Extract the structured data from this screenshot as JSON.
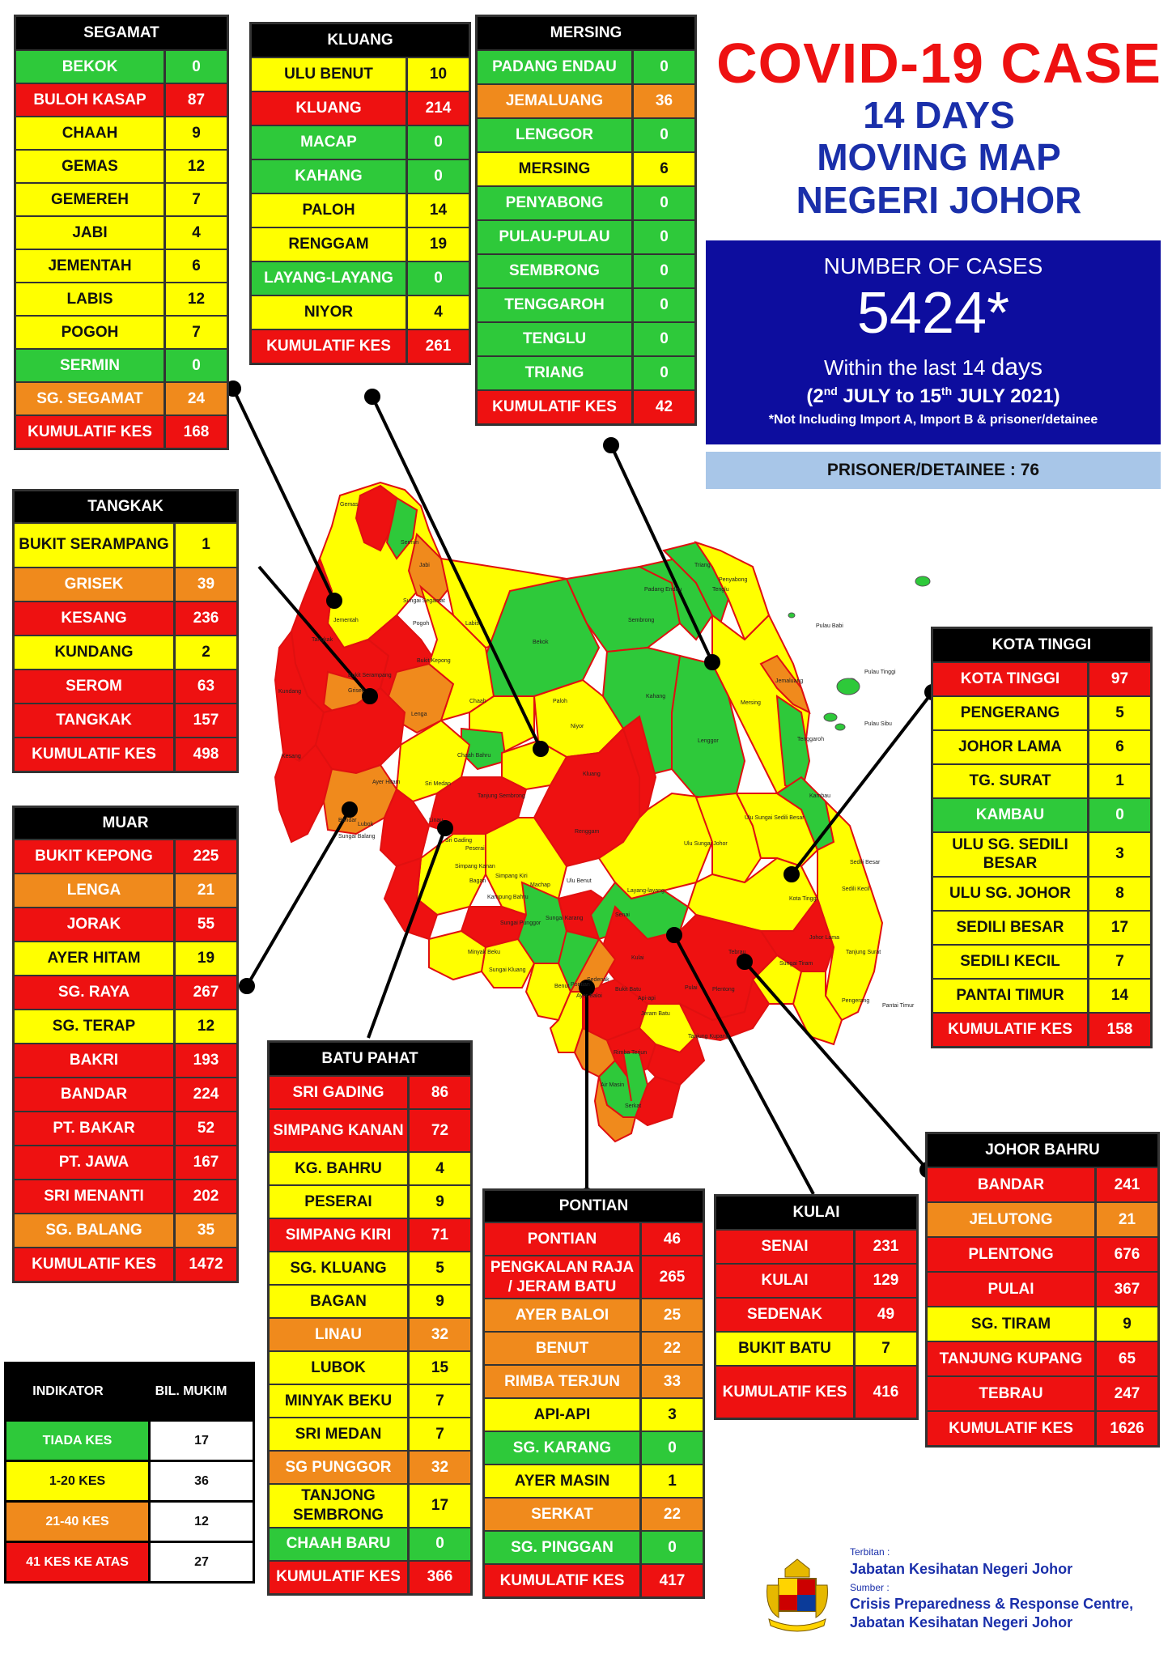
{
  "title": {
    "line1": "COVID-19 CASE",
    "line2": "14 DAYS",
    "line3": "MOVING MAP",
    "line4": "NEGERI JOHOR"
  },
  "summary": {
    "label": "NUMBER OF CASES",
    "total": "5424*",
    "within_prefix": "Within the last 14",
    "within_days": "days",
    "range_a": "(2",
    "range_sup1": "nd",
    "range_b": " JULY to 15",
    "range_sup2": "th",
    "range_c": " JULY 2021)",
    "note": "*Not Including Import A, Import B & prisoner/detainee",
    "prisoner": "PRISONER/DETAINEE : 76"
  },
  "districts": {
    "segamat": {
      "name": "SEGAMAT",
      "rows": [
        {
          "name": "BEKOK",
          "value": "0",
          "level": "green"
        },
        {
          "name": "BULOH KASAP",
          "value": "87",
          "level": "red"
        },
        {
          "name": "CHAAH",
          "value": "9",
          "level": "yellow"
        },
        {
          "name": "GEMAS",
          "value": "12",
          "level": "yellow"
        },
        {
          "name": "GEMEREH",
          "value": "7",
          "level": "yellow"
        },
        {
          "name": "JABI",
          "value": "4",
          "level": "yellow"
        },
        {
          "name": "JEMENTAH",
          "value": "6",
          "level": "yellow"
        },
        {
          "name": "LABIS",
          "value": "12",
          "level": "yellow"
        },
        {
          "name": "POGOH",
          "value": "7",
          "level": "yellow"
        },
        {
          "name": "SERMIN",
          "value": "0",
          "level": "green"
        },
        {
          "name": "SG. SEGAMAT",
          "value": "24",
          "level": "orange"
        },
        {
          "name": "KUMULATIF KES",
          "value": "168",
          "level": "red"
        }
      ]
    },
    "kluang": {
      "name": "KLUANG",
      "rows": [
        {
          "name": "ULU BENUT",
          "value": "10",
          "level": "yellow"
        },
        {
          "name": "KLUANG",
          "value": "214",
          "level": "red"
        },
        {
          "name": "MACAP",
          "value": "0",
          "level": "green"
        },
        {
          "name": "KAHANG",
          "value": "0",
          "level": "green"
        },
        {
          "name": "PALOH",
          "value": "14",
          "level": "yellow"
        },
        {
          "name": "RENGGAM",
          "value": "19",
          "level": "yellow"
        },
        {
          "name": "LAYANG-LAYANG",
          "value": "0",
          "level": "green"
        },
        {
          "name": "NIYOR",
          "value": "4",
          "level": "yellow"
        },
        {
          "name": "KUMULATIF KES",
          "value": "261",
          "level": "red"
        }
      ]
    },
    "mersing": {
      "name": "MERSING",
      "rows": [
        {
          "name": "PADANG ENDAU",
          "value": "0",
          "level": "green"
        },
        {
          "name": "JEMALUANG",
          "value": "36",
          "level": "orange"
        },
        {
          "name": "LENGGOR",
          "value": "0",
          "level": "green"
        },
        {
          "name": "MERSING",
          "value": "6",
          "level": "yellow"
        },
        {
          "name": "PENYABONG",
          "value": "0",
          "level": "green"
        },
        {
          "name": "PULAU-PULAU",
          "value": "0",
          "level": "green"
        },
        {
          "name": "SEMBRONG",
          "value": "0",
          "level": "green"
        },
        {
          "name": "TENGGAROH",
          "value": "0",
          "level": "green"
        },
        {
          "name": "TENGLU",
          "value": "0",
          "level": "green"
        },
        {
          "name": "TRIANG",
          "value": "0",
          "level": "green"
        },
        {
          "name": "KUMULATIF KES",
          "value": "42",
          "level": "red"
        }
      ]
    },
    "tangkak": {
      "name": "TANGKAK",
      "rows": [
        {
          "name": "BUKIT SERAMPANG",
          "value": "1",
          "level": "yellow",
          "tall": true
        },
        {
          "name": "GRISEK",
          "value": "39",
          "level": "orange"
        },
        {
          "name": "KESANG",
          "value": "236",
          "level": "red"
        },
        {
          "name": "KUNDANG",
          "value": "2",
          "level": "yellow"
        },
        {
          "name": "SEROM",
          "value": "63",
          "level": "red"
        },
        {
          "name": "TANGKAK",
          "value": "157",
          "level": "red"
        },
        {
          "name": "KUMULATIF KES",
          "value": "498",
          "level": "red"
        }
      ]
    },
    "muar": {
      "name": "MUAR",
      "rows": [
        {
          "name": "BUKIT KEPONG",
          "value": "225",
          "level": "red"
        },
        {
          "name": "LENGA",
          "value": "21",
          "level": "orange"
        },
        {
          "name": "JORAK",
          "value": "55",
          "level": "red"
        },
        {
          "name": "AYER HITAM",
          "value": "19",
          "level": "yellow"
        },
        {
          "name": "SG. RAYA",
          "value": "267",
          "level": "red"
        },
        {
          "name": "SG. TERAP",
          "value": "12",
          "level": "yellow"
        },
        {
          "name": "BAKRI",
          "value": "193",
          "level": "red"
        },
        {
          "name": "BANDAR",
          "value": "224",
          "level": "red"
        },
        {
          "name": "PT. BAKAR",
          "value": "52",
          "level": "red"
        },
        {
          "name": "PT. JAWA",
          "value": "167",
          "level": "red"
        },
        {
          "name": "SRI MENANTI",
          "value": "202",
          "level": "red"
        },
        {
          "name": "SG. BALANG",
          "value": "35",
          "level": "orange"
        },
        {
          "name": "KUMULATIF KES",
          "value": "1472",
          "level": "red"
        }
      ]
    },
    "kota_tinggi": {
      "name": "KOTA TINGGI",
      "rows": [
        {
          "name": "KOTA TINGGI",
          "value": "97",
          "level": "red"
        },
        {
          "name": "PENGERANG",
          "value": "5",
          "level": "yellow"
        },
        {
          "name": "JOHOR LAMA",
          "value": "6",
          "level": "yellow"
        },
        {
          "name": "TG. SURAT",
          "value": "1",
          "level": "yellow"
        },
        {
          "name": "KAMBAU",
          "value": "0",
          "level": "green"
        },
        {
          "name": "ULU SG. SEDILI BESAR",
          "value": "3",
          "level": "yellow",
          "tall": true
        },
        {
          "name": "ULU  SG. JOHOR",
          "value": "8",
          "level": "yellow"
        },
        {
          "name": "SEDILI BESAR",
          "value": "17",
          "level": "yellow"
        },
        {
          "name": "SEDILI KECIL",
          "value": "7",
          "level": "yellow"
        },
        {
          "name": "PANTAI TIMUR",
          "value": "14",
          "level": "yellow"
        },
        {
          "name": "KUMULATIF KES",
          "value": "158",
          "level": "red"
        }
      ]
    },
    "batu_pahat": {
      "name": "BATU PAHAT",
      "rows": [
        {
          "name": "SRI GADING",
          "value": "86",
          "level": "red"
        },
        {
          "name": "SIMPANG KANAN",
          "value": "72",
          "level": "red",
          "tall": true
        },
        {
          "name": "KG. BAHRU",
          "value": "4",
          "level": "yellow"
        },
        {
          "name": "PESERAI",
          "value": "9",
          "level": "yellow"
        },
        {
          "name": "SIMPANG KIRI",
          "value": "71",
          "level": "red"
        },
        {
          "name": "SG. KLUANG",
          "value": "5",
          "level": "yellow"
        },
        {
          "name": "BAGAN",
          "value": "9",
          "level": "yellow"
        },
        {
          "name": "LINAU",
          "value": "32",
          "level": "orange"
        },
        {
          "name": "LUBOK",
          "value": "15",
          "level": "yellow"
        },
        {
          "name": "MINYAK BEKU",
          "value": "7",
          "level": "yellow"
        },
        {
          "name": "SRI MEDAN",
          "value": "7",
          "level": "yellow"
        },
        {
          "name": "SG PUNGGOR",
          "value": "32",
          "level": "orange"
        },
        {
          "name": "TANJONG SEMBRONG",
          "value": "17",
          "level": "yellow",
          "tall": true
        },
        {
          "name": "CHAAH BARU",
          "value": "0",
          "level": "green"
        },
        {
          "name": "KUMULATIF KES",
          "value": "366",
          "level": "red"
        }
      ]
    },
    "pontian": {
      "name": "PONTIAN",
      "rows": [
        {
          "name": "PONTIAN",
          "value": "46",
          "level": "red"
        },
        {
          "name": "PENGKALAN RAJA / JERAM BATU",
          "value": "265",
          "level": "red",
          "tall": true
        },
        {
          "name": "AYER BALOI",
          "value": "25",
          "level": "orange"
        },
        {
          "name": "BENUT",
          "value": "22",
          "level": "orange"
        },
        {
          "name": "RIMBA TERJUN",
          "value": "33",
          "level": "orange"
        },
        {
          "name": "API-API",
          "value": "3",
          "level": "yellow"
        },
        {
          "name": "SG. KARANG",
          "value": "0",
          "level": "green"
        },
        {
          "name": "AYER MASIN",
          "value": "1",
          "level": "yellow"
        },
        {
          "name": "SERKAT",
          "value": "22",
          "level": "orange"
        },
        {
          "name": "SG. PINGGAN",
          "value": "0",
          "level": "green"
        },
        {
          "name": "KUMULATIF KES",
          "value": "417",
          "level": "red"
        }
      ]
    },
    "kulai": {
      "name": "KULAI",
      "rows": [
        {
          "name": "SENAI",
          "value": "231",
          "level": "red"
        },
        {
          "name": "KULAI",
          "value": "129",
          "level": "red"
        },
        {
          "name": "SEDENAK",
          "value": "49",
          "level": "red"
        },
        {
          "name": "BUKIT BATU",
          "value": "7",
          "level": "yellow"
        },
        {
          "name": "KUMULATIF KES",
          "value": "416",
          "level": "red",
          "xtall": true
        }
      ]
    },
    "johor_bahru": {
      "name": "JOHOR BAHRU",
      "rows": [
        {
          "name": "BANDAR",
          "value": "241",
          "level": "red"
        },
        {
          "name": "JELUTONG",
          "value": "21",
          "level": "orange"
        },
        {
          "name": "PLENTONG",
          "value": "676",
          "level": "red"
        },
        {
          "name": "PULAI",
          "value": "367",
          "level": "red"
        },
        {
          "name": "SG. TIRAM",
          "value": "9",
          "level": "yellow"
        },
        {
          "name": "TANJUNG KUPANG",
          "value": "65",
          "level": "red"
        },
        {
          "name": "TEBRAU",
          "value": "247",
          "level": "red"
        },
        {
          "name": "KUMULATIF KES",
          "value": "1626",
          "level": "red"
        }
      ]
    }
  },
  "legend": {
    "col1": "INDIKATOR",
    "col2": "BIL. MUKIM",
    "rows": [
      {
        "label": "TIADA KES",
        "count": "17",
        "level": "green"
      },
      {
        "label": "1-20 KES",
        "count": "36",
        "level": "yellow"
      },
      {
        "label": "21-40 KES",
        "count": "12",
        "level": "orange"
      },
      {
        "label": "41 KES KE ATAS",
        "count": "27",
        "level": "red"
      }
    ]
  },
  "map_labels": [
    "Gemas",
    "Jementah",
    "Sermin",
    "Jabi",
    "Sungai Segamat",
    "Pogoh",
    "Labis",
    "Bekok",
    "Sembrong",
    "Triang",
    "Penyabong",
    "Tenglu",
    "Pulau Babi",
    "Pulau Tinggi",
    "Pulau Sibu",
    "Tangkak",
    "Grisek",
    "Bukit Serampang",
    "Bukit Kepong",
    "Lenga",
    "Chaah",
    "Paloh",
    "Niyor",
    "Kahang",
    "Lenggor",
    "Mersing",
    "Jemaluang",
    "Tenggaroh",
    "Kundang",
    "Kesang",
    "Chaah Bahru",
    "Sri Medan",
    "Ayer Hitam",
    "Tanjung Sembrong",
    "Kluang",
    "Renggam",
    "Kambau",
    "Ulu Sungai Sedili Besar",
    "Ulu Sungai Johor",
    "Sedili Besar",
    "Layang-layang",
    "Machap",
    "Ulu Benut",
    "Kota Tinggi",
    "Sedili Kecil",
    "Johor Lama",
    "Tanjung Surat",
    "Pengerang",
    "Pantai Timur",
    "Senai",
    "Kulai",
    "Sedenak",
    "Bukit Batu",
    "Pulai",
    "Plentong",
    "Tebrau",
    "Sungai Tiram",
    "Pontian",
    "Serkat",
    "Tanjung Kupang",
    "Benut",
    "Sungai Balang",
    "Bandar",
    "Lubok",
    "Linau",
    "Sri Gading",
    "Peserai",
    "Simpang Kanan",
    "Simpang Kiri",
    "Sungai Punggor",
    "Sungai Kluang",
    "Minyak Beku",
    "Bagan",
    "Kampung Bahru",
    "Sungai Karang",
    "Jeram Batu",
    "Rimba Terjun",
    "Air Masin",
    "Api-api",
    "Ayer Baloi",
    "Padang Endau"
  ],
  "footer": {
    "published_label": "Terbitan :",
    "published_by": "Jabatan Kesihatan Negeri Johor",
    "source_label": "Sumber :",
    "source_line1": "Crisis Preparedness & Response Centre,",
    "source_line2": "Jabatan Kesihatan Negeri Johor"
  },
  "colors": {
    "green": "#2ec93a",
    "yellow": "#ffff00",
    "orange": "#f08a1c",
    "red": "#ee1111",
    "title_red": "#ee1111",
    "title_blue": "#1a2faa",
    "summary_bg": "#0d0d9e",
    "prisoner_bg": "#a8c6e8"
  }
}
